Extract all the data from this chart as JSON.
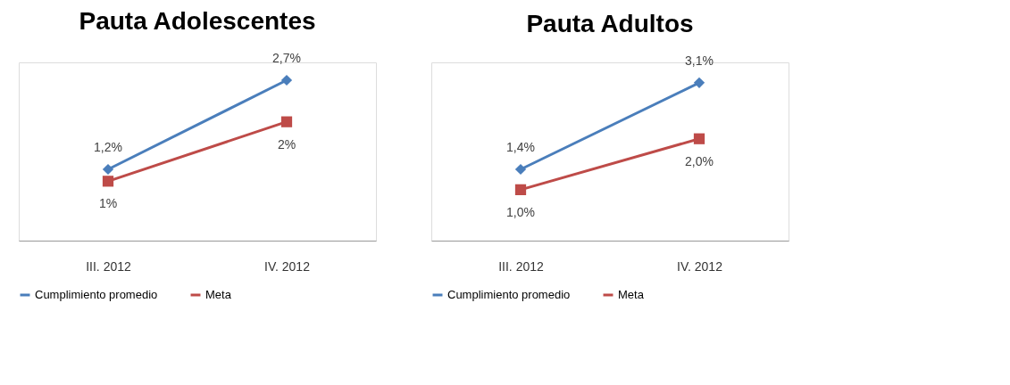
{
  "chart_data": [
    {
      "type": "line",
      "title": "Pauta Adolescentes",
      "categories": [
        "III. 2012",
        "IV. 2012"
      ],
      "ylim": [
        0,
        3
      ],
      "legend": "bottom",
      "grid": false,
      "series": [
        {
          "name": "Cumplimiento promedio",
          "color": "#4a7ebb",
          "marker": "diamond",
          "values": [
            1.2,
            2.7
          ],
          "value_labels": [
            "1,2%",
            "2,7%"
          ]
        },
        {
          "name": "Meta",
          "color": "#be4b48",
          "marker": "square",
          "values": [
            1,
            2
          ],
          "value_labels": [
            "1%",
            "2%"
          ]
        }
      ]
    },
    {
      "type": "line",
      "title": "Pauta Adultos",
      "categories": [
        "III. 2012",
        "IV. 2012"
      ],
      "ylim": [
        0,
        3.5
      ],
      "legend": "bottom",
      "grid": false,
      "series": [
        {
          "name": "Cumplimiento promedio",
          "color": "#4a7ebb",
          "marker": "diamond",
          "values": [
            1.4,
            3.1
          ],
          "value_labels": [
            "1,4%",
            "3,1%"
          ]
        },
        {
          "name": "Meta",
          "color": "#be4b48",
          "marker": "square",
          "values": [
            1.0,
            2.0
          ],
          "value_labels": [
            "1,0%",
            "2,0%"
          ]
        }
      ]
    }
  ]
}
